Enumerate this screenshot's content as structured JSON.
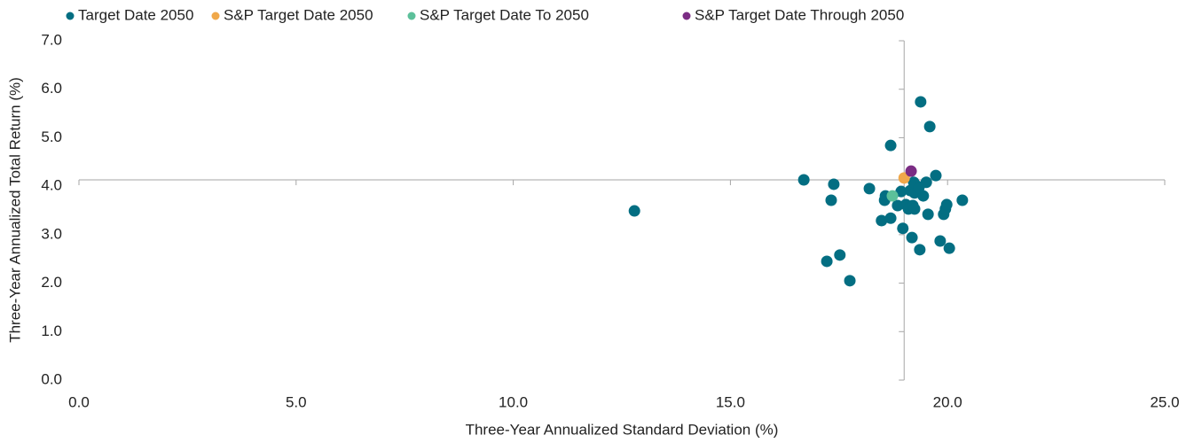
{
  "chart_data": {
    "type": "scatter",
    "x_label": "Three-Year Annualized Standard Deviation (%)",
    "y_label": "Three-Year Annualized Total Return (%)",
    "xlim": [
      0,
      25
    ],
    "ylim": [
      0,
      7
    ],
    "xticks": [
      {
        "value": 0,
        "label": "0.0"
      },
      {
        "value": 5,
        "label": "5.0"
      },
      {
        "value": 10,
        "label": "10.0"
      },
      {
        "value": 15,
        "label": "15.0"
      },
      {
        "value": 20,
        "label": "20.0"
      },
      {
        "value": 25,
        "label": "25.0"
      }
    ],
    "yticks": [
      {
        "value": 0,
        "label": "0.0"
      },
      {
        "value": 1,
        "label": "1.0"
      },
      {
        "value": 2,
        "label": "2.0"
      },
      {
        "value": 3,
        "label": "3.0"
      },
      {
        "value": 4,
        "label": "4.0"
      },
      {
        "value": 5,
        "label": "5.0"
      },
      {
        "value": 6,
        "label": "6.0"
      },
      {
        "value": 7,
        "label": "7.0"
      }
    ],
    "axes_cross": {
      "x": 19.0,
      "y": 4.13
    },
    "legend": "top",
    "series": [
      {
        "name": "Target Date 2050",
        "color": "#036e82",
        "x": [
          12.79,
          16.69,
          17.38,
          17.32,
          17.22,
          17.52,
          17.75,
          18.2,
          18.55,
          18.57,
          18.48,
          18.69,
          18.69,
          18.97,
          18.85,
          18.93,
          19.04,
          19.1,
          19.2,
          19.24,
          19.14,
          19.24,
          19.3,
          19.22,
          19.44,
          19.51,
          19.34,
          19.38,
          19.59,
          19.73,
          19.55,
          19.91,
          19.95,
          19.98,
          20.34,
          19.18,
          19.36,
          19.83,
          20.04
        ],
        "values": [
          3.49,
          4.13,
          4.04,
          3.71,
          2.45,
          2.58,
          2.05,
          3.95,
          3.71,
          3.8,
          3.29,
          3.34,
          4.84,
          3.13,
          3.6,
          3.89,
          3.62,
          3.53,
          3.6,
          3.53,
          3.91,
          3.86,
          4.0,
          4.08,
          3.8,
          4.08,
          3.97,
          5.74,
          5.23,
          4.22,
          3.42,
          3.42,
          3.53,
          3.62,
          3.71,
          2.94,
          2.69,
          2.87,
          2.72
        ]
      },
      {
        "name": "S&P Target Date 2050",
        "color": "#f0a84a",
        "x": [
          19.0
        ],
        "values": [
          4.17
        ]
      },
      {
        "name": "S&P Target Date To 2050",
        "color": "#5cc09a",
        "x": [
          18.73
        ],
        "values": [
          3.8
        ]
      },
      {
        "name": "S&P Target Date Through 2050",
        "color": "#7b2d84",
        "x": [
          19.16
        ],
        "values": [
          4.31
        ]
      }
    ]
  }
}
